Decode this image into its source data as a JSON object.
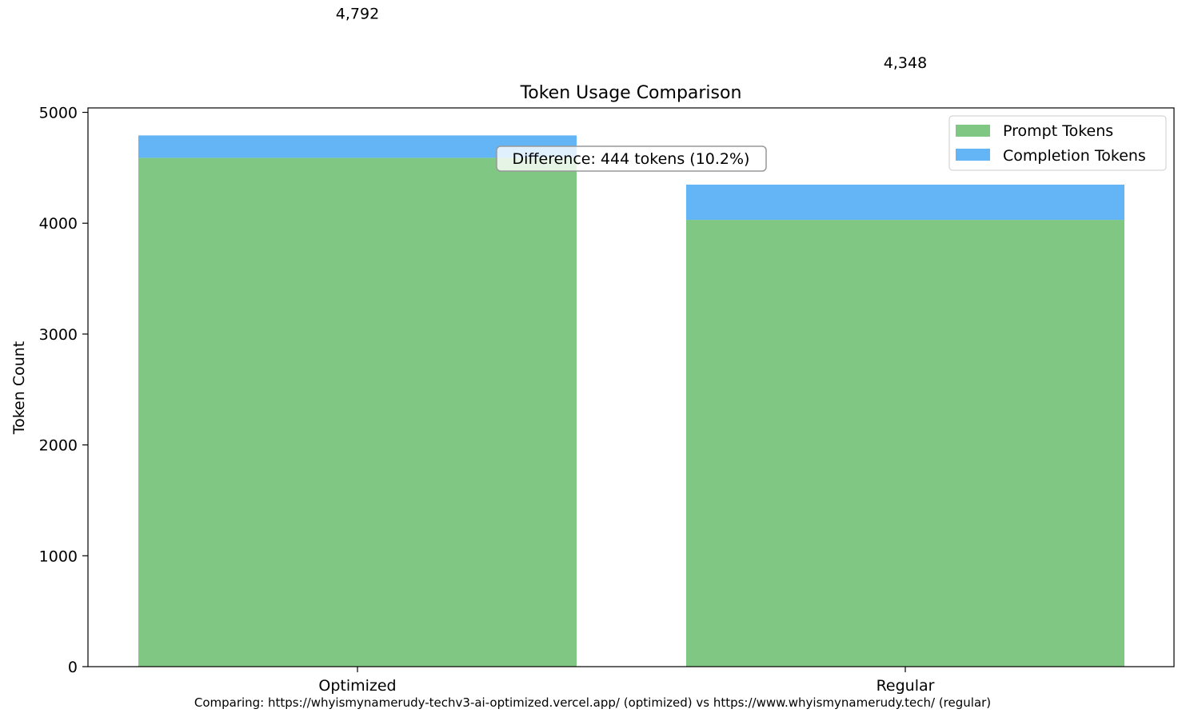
{
  "chart_data": {
    "type": "bar",
    "stacked": true,
    "title": "Token Usage Comparison",
    "xlabel": "",
    "ylabel": "Token Count",
    "categories": [
      "Optimized",
      "Regular"
    ],
    "series": [
      {
        "name": "Prompt Tokens",
        "values": [
          4590,
          4030
        ],
        "color": "#81c784"
      },
      {
        "name": "Completion Tokens",
        "values": [
          202,
          318
        ],
        "color": "#64b5f6"
      }
    ],
    "totals": [
      4792,
      4348
    ],
    "total_labels": [
      "4,792",
      "4,348"
    ],
    "ylim": [
      0,
      5040
    ],
    "yticks": [
      0,
      1000,
      2000,
      3000,
      4000,
      5000
    ],
    "grid": false,
    "legend_position": "top-right",
    "annotation": "Difference: 444 tokens (10.2%)",
    "caption": "Comparing: https://whyismynamerudy-techv3-ai-optimized.vercel.app/ (optimized) vs https://www.whyismynamerudy.tech/ (regular)"
  }
}
